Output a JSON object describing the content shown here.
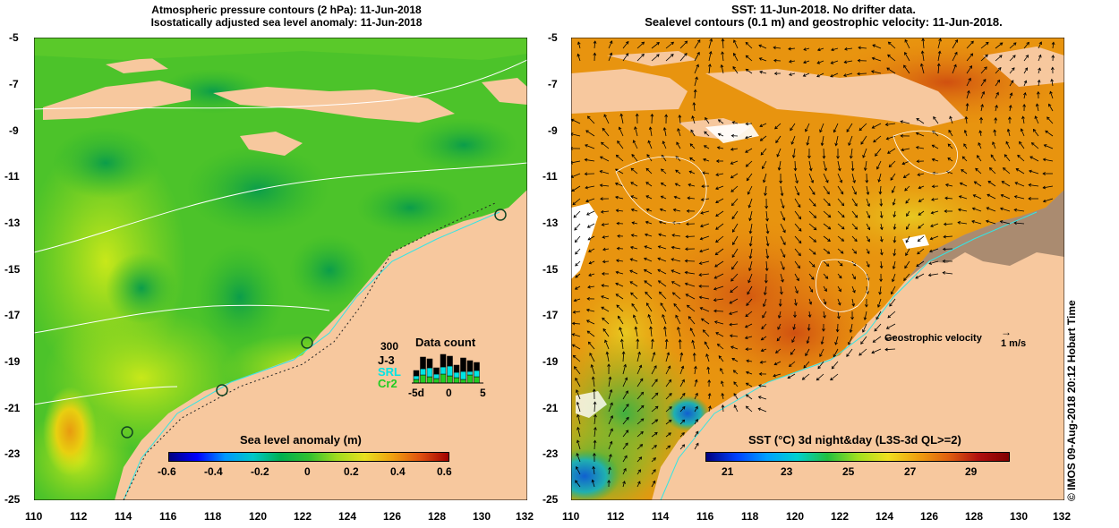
{
  "left_panel": {
    "title_line1": "Atmospheric pressure contours (2 hPa): 11-Jun-2018",
    "title_line2": "Isostatically adjusted sea level anomaly: 11-Jun-2018",
    "y_ticks": [
      "-5",
      "-7",
      "-9",
      "-11",
      "-13",
      "-15",
      "-17",
      "-19",
      "-21",
      "-23",
      "-25"
    ],
    "x_ticks": [
      "110",
      "112",
      "114",
      "116",
      "118",
      "120",
      "122",
      "124",
      "126",
      "128",
      "130",
      "132"
    ],
    "colorbar_title": "Sea level anomaly (m)",
    "colorbar_ticks": [
      "-0.6",
      "-0.4",
      "-0.2",
      "0",
      "0.2",
      "0.4",
      "0.6"
    ],
    "data_count": {
      "value": "300",
      "title": "Data count",
      "sats": [
        {
          "label": "J-3",
          "color": "#000000"
        },
        {
          "label": "SRL",
          "color": "#00e5e5"
        },
        {
          "label": "Cr2",
          "color": "#22cc22"
        }
      ],
      "axis": [
        "-5d",
        "0",
        "5"
      ]
    }
  },
  "right_panel": {
    "title_line1": "SST: 11-Jun-2018. No drifter data.",
    "title_line2": "Sealevel contours (0.1 m) and geostrophic velocity: 11-Jun-2018.",
    "y_ticks": [
      "-5",
      "-7",
      "-9",
      "-11",
      "-13",
      "-15",
      "-17",
      "-19",
      "-21",
      "-23",
      "-25"
    ],
    "x_ticks": [
      "110",
      "112",
      "114",
      "116",
      "118",
      "120",
      "122",
      "124",
      "126",
      "128",
      "130",
      "132"
    ],
    "colorbar_title": "SST (°C) 3d night&day (L3S-3d QL>=2)",
    "colorbar_ticks": [
      "21",
      "23",
      "25",
      "27",
      "29"
    ],
    "velocity_label": "Geostrophic velocity",
    "velocity_scale": "1 m/s"
  },
  "credit": "© IMOS 09-Aug-2018 20:12 Hobart Time"
}
